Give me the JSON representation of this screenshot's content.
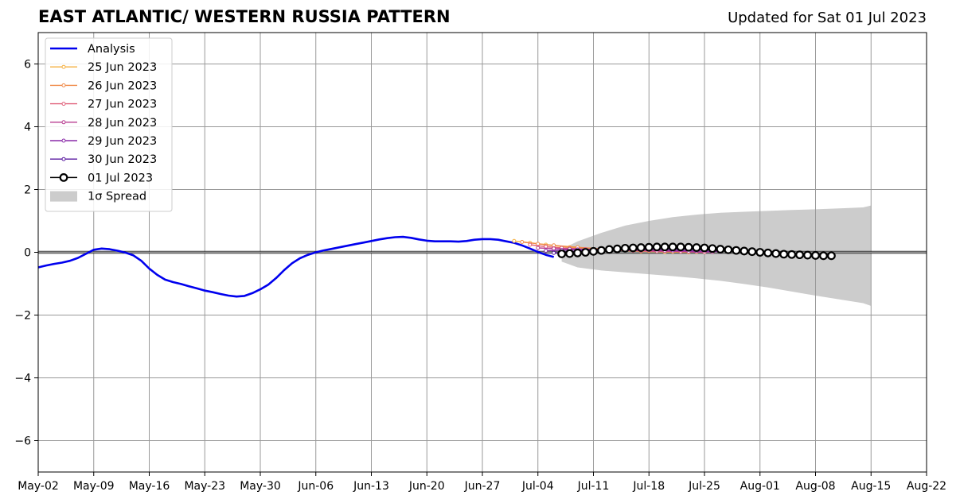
{
  "header": {
    "title": "EAST ATLANTIC/ WESTERN RUSSIA PATTERN",
    "updated": "Updated for Sat 01 Jul 2023"
  },
  "colors": {
    "analysis": "#0000ee",
    "spread": "#cccccc",
    "grid": "#999999",
    "zero_line": "#333333"
  },
  "chart_data": {
    "type": "line",
    "title": "EAST ATLANTIC/ WESTERN RUSSIA PATTERN",
    "xlabel": "",
    "ylabel": "",
    "xlim": [
      "2023-05-02",
      "2023-08-22"
    ],
    "ylim": [
      -7,
      7
    ],
    "grid": true,
    "legend_position": "top-left",
    "x_tick_labels": [
      "May-02",
      "May-09",
      "May-16",
      "May-23",
      "May-30",
      "Jun-06",
      "Jun-13",
      "Jun-20",
      "Jun-27",
      "Jul-04",
      "Jul-11",
      "Jul-18",
      "Jul-25",
      "Aug-01",
      "Aug-08",
      "Aug-15",
      "Aug-22"
    ],
    "x_tick_dates": [
      "2023-05-02",
      "2023-05-09",
      "2023-05-16",
      "2023-05-23",
      "2023-05-30",
      "2023-06-06",
      "2023-06-13",
      "2023-06-20",
      "2023-06-27",
      "2023-07-04",
      "2023-07-11",
      "2023-07-18",
      "2023-07-25",
      "2023-08-01",
      "2023-08-08",
      "2023-08-15",
      "2023-08-22"
    ],
    "y_tick_values": [
      -6,
      -4,
      -2,
      0,
      2,
      4,
      6
    ],
    "y_tick_labels": [
      "−6",
      "−4",
      "−2",
      "0",
      "2",
      "4",
      "6"
    ],
    "analysis": {
      "name": "Analysis",
      "color": "#0000ee",
      "points": [
        [
          "2023-05-02",
          -0.48
        ],
        [
          "2023-05-03",
          -0.42
        ],
        [
          "2023-05-04",
          -0.37
        ],
        [
          "2023-05-05",
          -0.33
        ],
        [
          "2023-05-06",
          -0.27
        ],
        [
          "2023-05-07",
          -0.18
        ],
        [
          "2023-05-08",
          -0.05
        ],
        [
          "2023-05-09",
          0.08
        ],
        [
          "2023-05-10",
          0.12
        ],
        [
          "2023-05-11",
          0.1
        ],
        [
          "2023-05-12",
          0.05
        ],
        [
          "2023-05-13",
          -0.01
        ],
        [
          "2023-05-14",
          -0.1
        ],
        [
          "2023-05-15",
          -0.27
        ],
        [
          "2023-05-16",
          -0.52
        ],
        [
          "2023-05-17",
          -0.72
        ],
        [
          "2023-05-18",
          -0.87
        ],
        [
          "2023-05-19",
          -0.95
        ],
        [
          "2023-05-20",
          -1.01
        ],
        [
          "2023-05-21",
          -1.08
        ],
        [
          "2023-05-22",
          -1.15
        ],
        [
          "2023-05-23",
          -1.22
        ],
        [
          "2023-05-24",
          -1.27
        ],
        [
          "2023-05-25",
          -1.33
        ],
        [
          "2023-05-26",
          -1.38
        ],
        [
          "2023-05-27",
          -1.41
        ],
        [
          "2023-05-28",
          -1.39
        ],
        [
          "2023-05-29",
          -1.3
        ],
        [
          "2023-05-30",
          -1.18
        ],
        [
          "2023-05-31",
          -1.03
        ],
        [
          "2023-06-01",
          -0.82
        ],
        [
          "2023-06-02",
          -0.57
        ],
        [
          "2023-06-03",
          -0.35
        ],
        [
          "2023-06-04",
          -0.19
        ],
        [
          "2023-06-05",
          -0.08
        ],
        [
          "2023-06-06",
          0.0
        ],
        [
          "2023-06-07",
          0.06
        ],
        [
          "2023-06-08",
          0.11
        ],
        [
          "2023-06-09",
          0.16
        ],
        [
          "2023-06-10",
          0.21
        ],
        [
          "2023-06-11",
          0.26
        ],
        [
          "2023-06-12",
          0.31
        ],
        [
          "2023-06-13",
          0.36
        ],
        [
          "2023-06-14",
          0.41
        ],
        [
          "2023-06-15",
          0.45
        ],
        [
          "2023-06-16",
          0.48
        ],
        [
          "2023-06-17",
          0.49
        ],
        [
          "2023-06-18",
          0.46
        ],
        [
          "2023-06-19",
          0.41
        ],
        [
          "2023-06-20",
          0.37
        ],
        [
          "2023-06-21",
          0.35
        ],
        [
          "2023-06-22",
          0.35
        ],
        [
          "2023-06-23",
          0.35
        ],
        [
          "2023-06-24",
          0.34
        ],
        [
          "2023-06-25",
          0.36
        ],
        [
          "2023-06-26",
          0.4
        ],
        [
          "2023-06-27",
          0.42
        ],
        [
          "2023-06-28",
          0.42
        ],
        [
          "2023-06-29",
          0.4
        ],
        [
          "2023-06-30",
          0.35
        ],
        [
          "2023-07-01",
          0.3
        ],
        [
          "2023-07-02",
          0.22
        ],
        [
          "2023-07-03",
          0.12
        ],
        [
          "2023-07-04",
          0.01
        ],
        [
          "2023-07-05",
          -0.08
        ],
        [
          "2023-07-06",
          -0.15
        ]
      ]
    },
    "forecasts": [
      {
        "name": "25 Jun 2023",
        "color": "#f5b041",
        "points": [
          [
            "2023-07-01",
            0.36
          ],
          [
            "2023-07-03",
            0.3
          ],
          [
            "2023-07-05",
            0.24
          ],
          [
            "2023-07-08",
            0.16
          ],
          [
            "2023-07-11",
            0.1
          ],
          [
            "2023-07-14",
            0.06
          ],
          [
            "2023-07-17",
            0.03
          ],
          [
            "2023-07-20",
            0.01
          ],
          [
            "2023-07-23",
            0.0
          ]
        ]
      },
      {
        "name": "26 Jun 2023",
        "color": "#f08a48",
        "points": [
          [
            "2023-07-02",
            0.33
          ],
          [
            "2023-07-04",
            0.27
          ],
          [
            "2023-07-06",
            0.22
          ],
          [
            "2023-07-09",
            0.16
          ],
          [
            "2023-07-12",
            0.11
          ],
          [
            "2023-07-15",
            0.07
          ],
          [
            "2023-07-18",
            0.04
          ],
          [
            "2023-07-21",
            0.02
          ],
          [
            "2023-07-24",
            0.01
          ]
        ]
      },
      {
        "name": "27 Jun 2023",
        "color": "#e0607a",
        "points": [
          [
            "2023-07-03",
            0.24
          ],
          [
            "2023-07-05",
            0.18
          ],
          [
            "2023-07-07",
            0.14
          ],
          [
            "2023-07-10",
            0.1
          ],
          [
            "2023-07-13",
            0.07
          ],
          [
            "2023-07-16",
            0.05
          ],
          [
            "2023-07-19",
            0.03
          ],
          [
            "2023-07-22",
            0.02
          ],
          [
            "2023-07-25",
            0.0
          ]
        ]
      },
      {
        "name": "28 Jun 2023",
        "color": "#b83d91",
        "points": [
          [
            "2023-07-04",
            0.14
          ],
          [
            "2023-07-06",
            0.12
          ],
          [
            "2023-07-08",
            0.11
          ],
          [
            "2023-07-11",
            0.09
          ],
          [
            "2023-07-14",
            0.07
          ],
          [
            "2023-07-17",
            0.05
          ],
          [
            "2023-07-20",
            0.04
          ],
          [
            "2023-07-23",
            0.02
          ],
          [
            "2023-07-26",
            0.01
          ]
        ]
      },
      {
        "name": "29 Jun 2023",
        "color": "#8a2aa8",
        "points": [
          [
            "2023-07-05",
            0.05
          ],
          [
            "2023-07-07",
            0.07
          ],
          [
            "2023-07-09",
            0.09
          ],
          [
            "2023-07-12",
            0.1
          ],
          [
            "2023-07-15",
            0.09
          ],
          [
            "2023-07-18",
            0.08
          ],
          [
            "2023-07-21",
            0.06
          ],
          [
            "2023-07-24",
            0.04
          ],
          [
            "2023-07-27",
            0.02
          ]
        ]
      },
      {
        "name": "30 Jun 2023",
        "color": "#5a1aa0",
        "points": [
          [
            "2023-07-06",
            -0.02
          ],
          [
            "2023-07-08",
            0.02
          ],
          [
            "2023-07-10",
            0.06
          ],
          [
            "2023-07-13",
            0.1
          ],
          [
            "2023-07-16",
            0.12
          ],
          [
            "2023-07-19",
            0.12
          ],
          [
            "2023-07-22",
            0.1
          ],
          [
            "2023-07-25",
            0.08
          ],
          [
            "2023-07-28",
            0.05
          ]
        ]
      }
    ],
    "latest_forecast": {
      "name": "01 Jul 2023",
      "color": "#000000",
      "points": [
        [
          "2023-07-07",
          -0.05
        ],
        [
          "2023-07-08",
          -0.04
        ],
        [
          "2023-07-09",
          -0.02
        ],
        [
          "2023-07-10",
          0.0
        ],
        [
          "2023-07-11",
          0.03
        ],
        [
          "2023-07-12",
          0.06
        ],
        [
          "2023-07-13",
          0.09
        ],
        [
          "2023-07-14",
          0.11
        ],
        [
          "2023-07-15",
          0.13
        ],
        [
          "2023-07-16",
          0.14
        ],
        [
          "2023-07-17",
          0.15
        ],
        [
          "2023-07-18",
          0.16
        ],
        [
          "2023-07-19",
          0.17
        ],
        [
          "2023-07-20",
          0.17
        ],
        [
          "2023-07-21",
          0.17
        ],
        [
          "2023-07-22",
          0.17
        ],
        [
          "2023-07-23",
          0.16
        ],
        [
          "2023-07-24",
          0.15
        ],
        [
          "2023-07-25",
          0.14
        ],
        [
          "2023-07-26",
          0.12
        ],
        [
          "2023-07-27",
          0.1
        ],
        [
          "2023-07-28",
          0.08
        ],
        [
          "2023-07-29",
          0.06
        ],
        [
          "2023-07-30",
          0.04
        ],
        [
          "2023-07-31",
          0.02
        ],
        [
          "2023-08-01",
          0.0
        ],
        [
          "2023-08-02",
          -0.02
        ],
        [
          "2023-08-03",
          -0.04
        ],
        [
          "2023-08-04",
          -0.06
        ],
        [
          "2023-08-05",
          -0.07
        ],
        [
          "2023-08-06",
          -0.08
        ],
        [
          "2023-08-07",
          -0.09
        ],
        [
          "2023-08-08",
          -0.1
        ],
        [
          "2023-08-09",
          -0.11
        ],
        [
          "2023-08-10",
          -0.11
        ]
      ]
    },
    "spread": {
      "name": "1σ Spread",
      "color": "#cccccc",
      "points": [
        [
          "2023-07-07",
          0.1,
          -0.3
        ],
        [
          "2023-07-09",
          0.35,
          -0.48
        ],
        [
          "2023-07-12",
          0.62,
          -0.58
        ],
        [
          "2023-07-15",
          0.85,
          -0.64
        ],
        [
          "2023-07-18",
          1.0,
          -0.7
        ],
        [
          "2023-07-21",
          1.12,
          -0.76
        ],
        [
          "2023-07-24",
          1.2,
          -0.83
        ],
        [
          "2023-07-27",
          1.26,
          -0.91
        ],
        [
          "2023-07-30",
          1.29,
          -1.01
        ],
        [
          "2023-08-02",
          1.32,
          -1.12
        ],
        [
          "2023-08-05",
          1.35,
          -1.25
        ],
        [
          "2023-08-08",
          1.37,
          -1.38
        ],
        [
          "2023-08-11",
          1.4,
          -1.5
        ],
        [
          "2023-08-14",
          1.43,
          -1.62
        ],
        [
          "2023-08-15",
          1.49,
          -1.71
        ]
      ]
    }
  }
}
